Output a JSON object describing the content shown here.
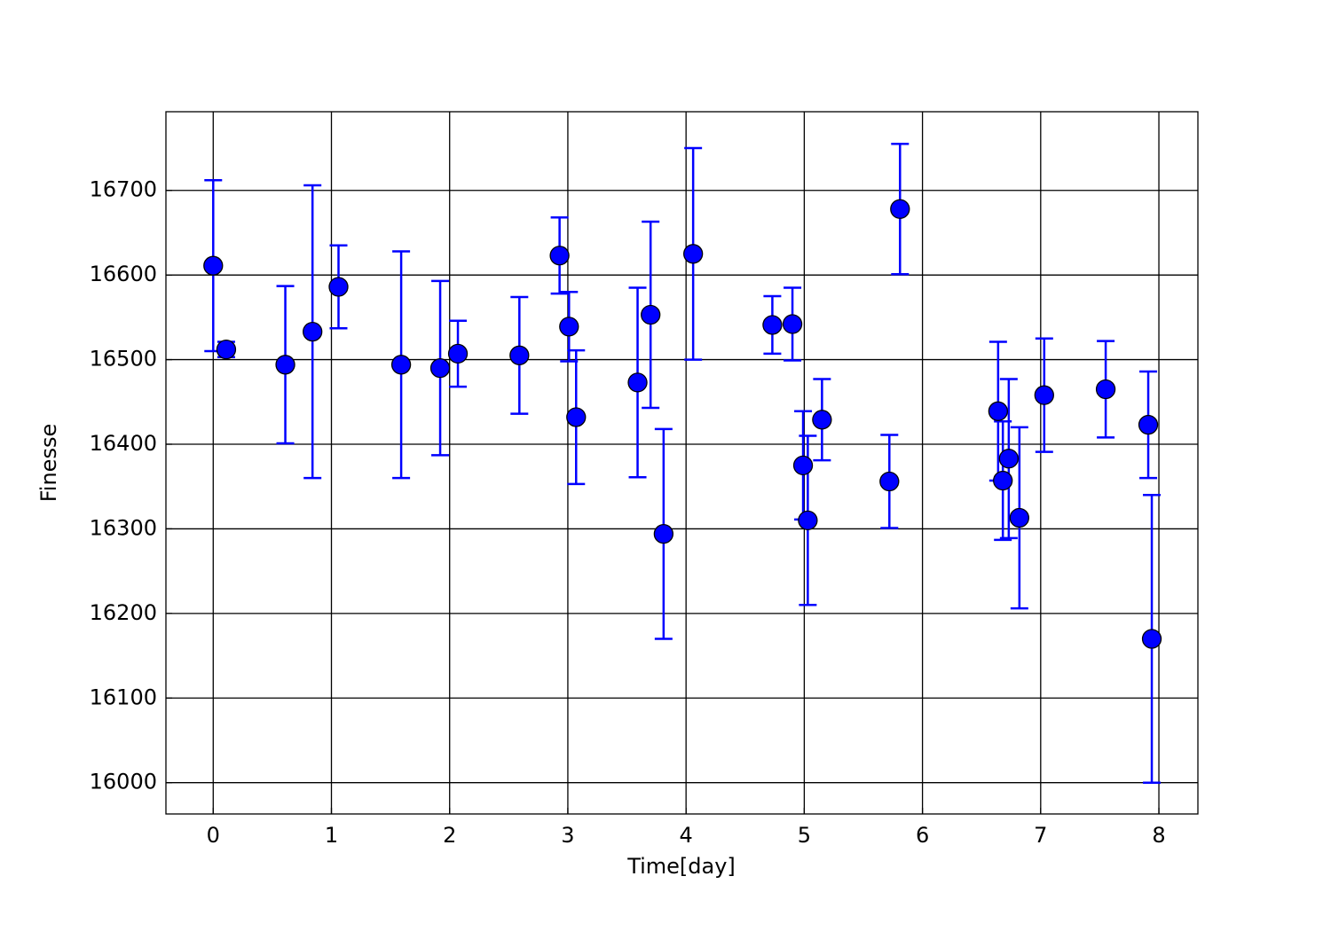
{
  "chart_data": {
    "type": "errorbar-scatter",
    "xlabel": "Time[day]",
    "ylabel": "Finesse",
    "x": [
      0.0,
      0.11,
      0.61,
      0.84,
      1.06,
      1.59,
      1.92,
      2.07,
      2.59,
      2.93,
      3.01,
      3.07,
      3.59,
      3.7,
      3.81,
      4.06,
      4.73,
      4.9,
      4.99,
      5.03,
      5.15,
      5.72,
      5.81,
      6.64,
      6.68,
      6.73,
      6.82,
      7.03,
      7.55,
      7.91,
      7.94
    ],
    "values": [
      16611,
      16512,
      16494,
      16533,
      16586,
      16494,
      16490,
      16507,
      16505,
      16623,
      16539,
      16432,
      16473,
      16553,
      16294,
      16625,
      16541,
      16542,
      16375,
      16310,
      16429,
      16356,
      16678,
      16439,
      16357,
      16383,
      16313,
      16458,
      16465,
      16423,
      16170
    ],
    "errors": [
      101,
      9,
      93,
      173,
      49,
      134,
      103,
      39,
      69,
      45,
      41,
      79,
      112,
      110,
      124,
      125,
      34,
      43,
      64,
      100,
      48,
      55,
      77,
      82,
      70,
      94,
      107,
      67,
      57,
      63,
      170
    ],
    "color": "#0000ff",
    "edgecolor": "#000000",
    "xlim": [
      -0.4,
      8.33
    ],
    "ylim": [
      15963,
      16793
    ],
    "xticks": [
      0,
      1,
      2,
      3,
      4,
      5,
      6,
      7,
      8
    ],
    "yticks": [
      16000,
      16100,
      16200,
      16300,
      16400,
      16500,
      16600,
      16700
    ],
    "grid": true
  }
}
